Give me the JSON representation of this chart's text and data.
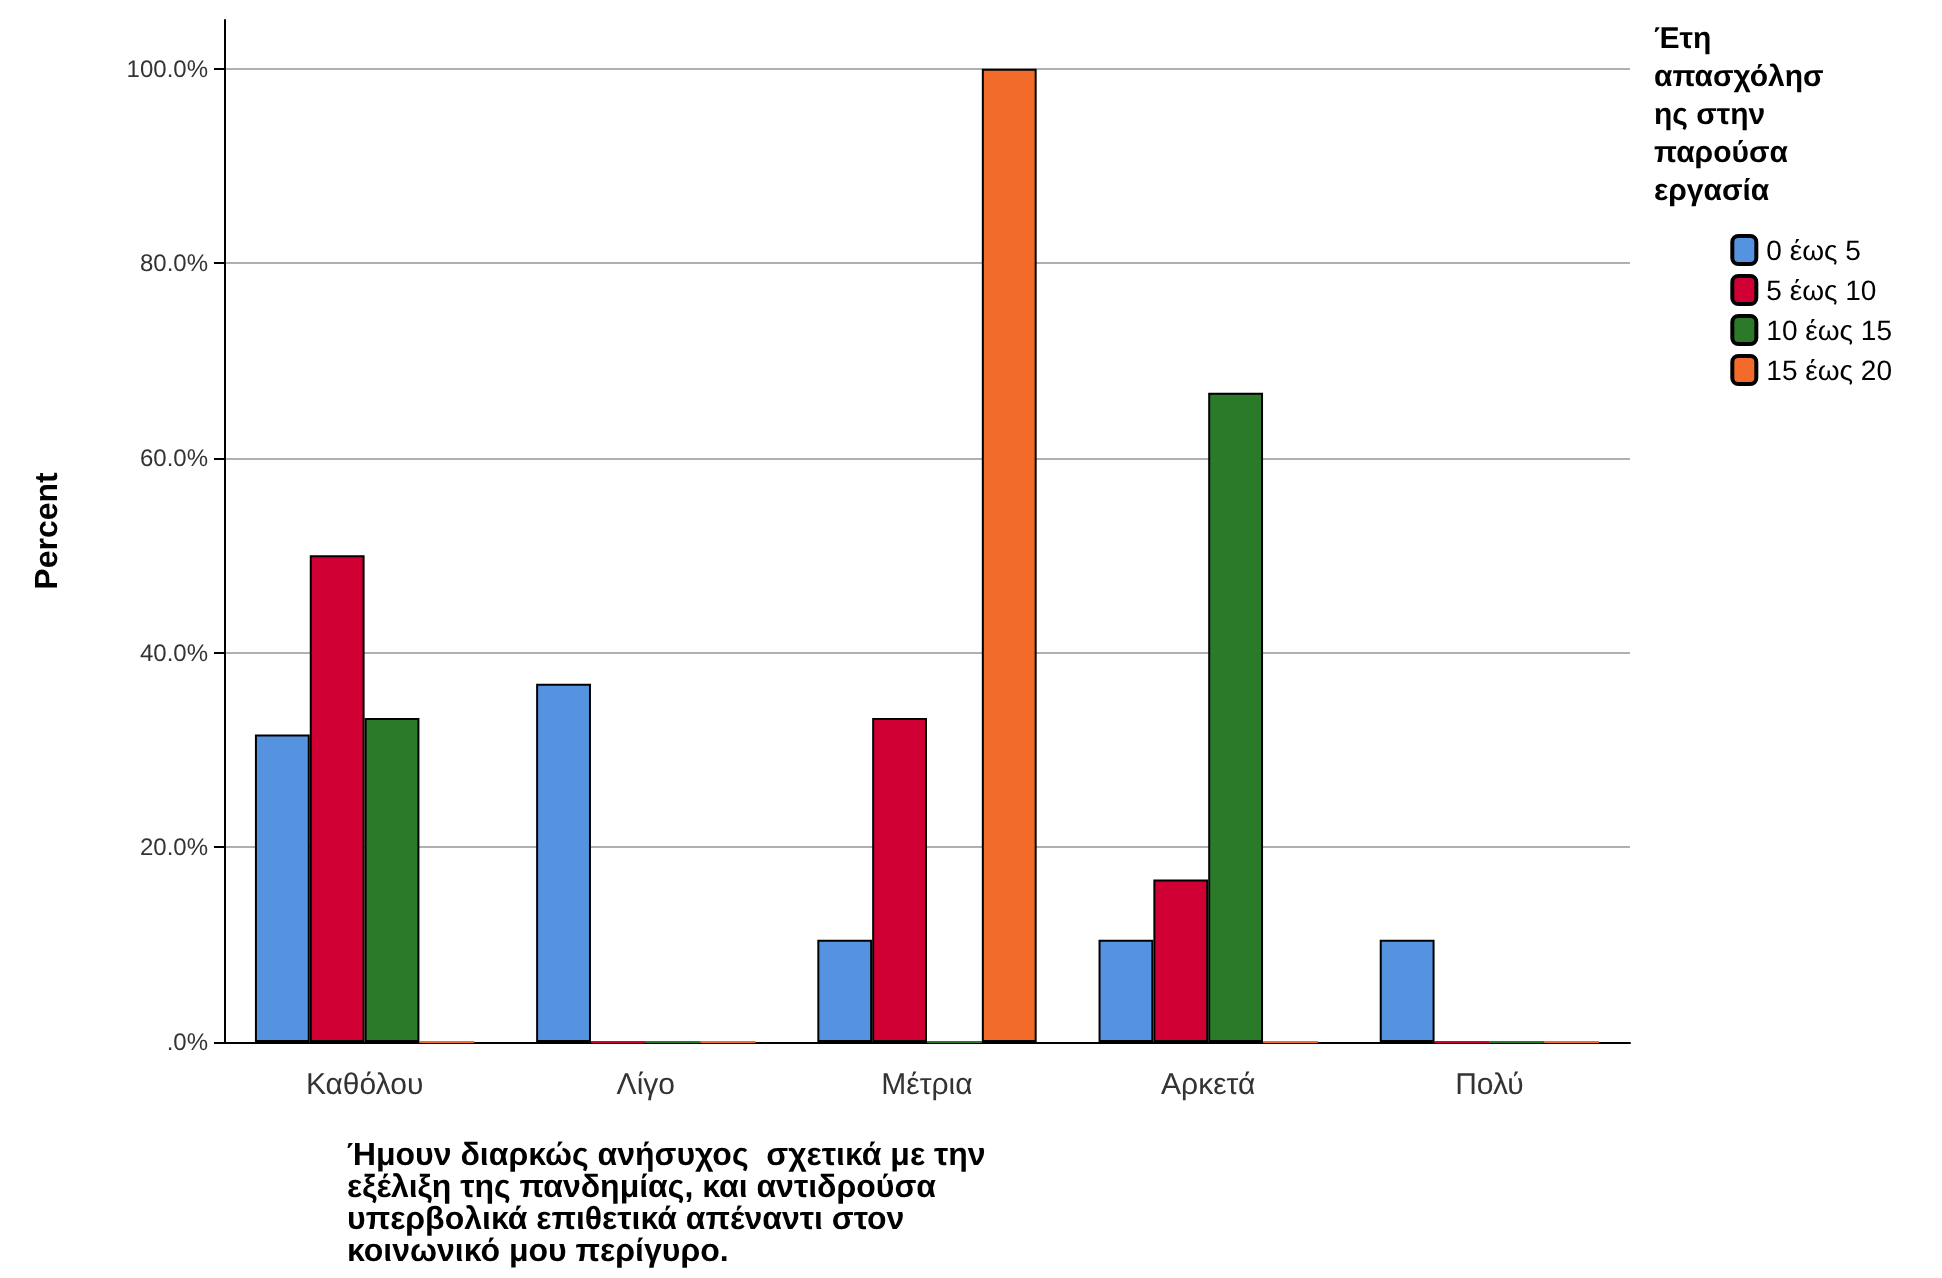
{
  "chart_data": {
    "type": "bar",
    "xlabel": "Ήμουν διαρκώς ανήσυχος  σχετικά με την εξέλιξη της πανδημίας, και αντιδρούσα υπερβολικά επιθετικά απέναντι στον κοινωνικό μου περίγυρο.",
    "ylabel": "Percent",
    "legend_title": "Έτη απασχόλησης στην παρούσα εργασία",
    "categories": [
      "Καθόλου",
      "Λίγο",
      "Μέτρια",
      "Αρκετά",
      "Πολύ"
    ],
    "series": [
      {
        "name": "0 έως 5",
        "color": "#5592e0",
        "values": [
          31.6,
          36.8,
          10.5,
          10.5,
          10.5
        ]
      },
      {
        "name": "5 έως 10",
        "color": "#d10034",
        "values": [
          50,
          0,
          33.3,
          16.7,
          0
        ]
      },
      {
        "name": "10 έως 15",
        "color": "#2a7a2a",
        "values": [
          33.3,
          0,
          0,
          66.7,
          0
        ]
      },
      {
        "name": "15 έως 20",
        "color": "#f26b2a",
        "values": [
          0,
          0,
          100,
          0,
          0
        ]
      }
    ],
    "ylim": [
      0,
      105
    ],
    "yticks": [
      {
        "value": 0,
        "label": ".0%"
      },
      {
        "value": 20,
        "label": "20.0%"
      },
      {
        "value": 40,
        "label": "40.0%"
      },
      {
        "value": 60,
        "label": "60.0%"
      },
      {
        "value": 80,
        "label": "80.0%"
      },
      {
        "value": 100,
        "label": "100.0%"
      }
    ],
    "grid": "y",
    "legend": "top right"
  }
}
